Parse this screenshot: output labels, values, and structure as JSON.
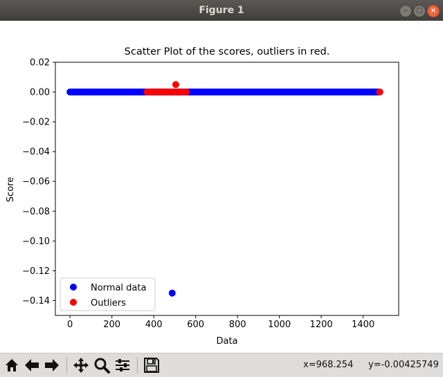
{
  "window": {
    "title": "Figure 1"
  },
  "toolbar": {
    "items": [
      "home-icon",
      "back-icon",
      "forward-icon",
      "pan-icon",
      "zoom-icon",
      "subplots-icon",
      "save-icon"
    ],
    "x_readout": "x=968.254",
    "y_readout": "y=-0.00425749"
  },
  "chart_data": {
    "type": "scatter",
    "title": "Scatter Plot of the scores, outliers in red.",
    "xlabel": "Data",
    "ylabel": "Score",
    "xlim": [
      -70,
      1570
    ],
    "ylim": [
      -0.15,
      0.02
    ],
    "xticks": [
      0,
      200,
      400,
      600,
      800,
      1000,
      1200,
      1400
    ],
    "xtick_labels": [
      "0",
      "200",
      "400",
      "600",
      "800",
      "1000",
      "1200",
      "1400"
    ],
    "yticks": [
      0.02,
      0.0,
      -0.02,
      -0.04,
      -0.06,
      -0.08,
      -0.1,
      -0.12,
      -0.14
    ],
    "ytick_labels": [
      "0.02",
      "0.00",
      "−0.02",
      "−0.04",
      "−0.06",
      "−0.08",
      "−0.10",
      "−0.12",
      "−0.14"
    ],
    "grid": false,
    "legend_position": "lower-left",
    "series": [
      {
        "name": "Normal data",
        "color": "#0000ff",
        "dense_x_range": [
          0,
          1480
        ],
        "dense_y": 0.0,
        "points": [
          [
            488,
            -0.135
          ]
        ]
      },
      {
        "name": "Outliers",
        "color": "#ff0000",
        "points": [
          [
            368,
            0
          ],
          [
            378,
            0
          ],
          [
            390,
            0
          ],
          [
            400,
            0
          ],
          [
            412,
            0
          ],
          [
            425,
            0
          ],
          [
            440,
            0
          ],
          [
            455,
            0
          ],
          [
            470,
            0
          ],
          [
            482,
            0
          ],
          [
            495,
            0
          ],
          [
            505,
            0
          ],
          [
            517,
            0
          ],
          [
            530,
            0
          ],
          [
            542,
            0
          ],
          [
            555,
            0
          ],
          [
            505,
            0.005
          ],
          [
            1480,
            0
          ]
        ]
      }
    ]
  }
}
